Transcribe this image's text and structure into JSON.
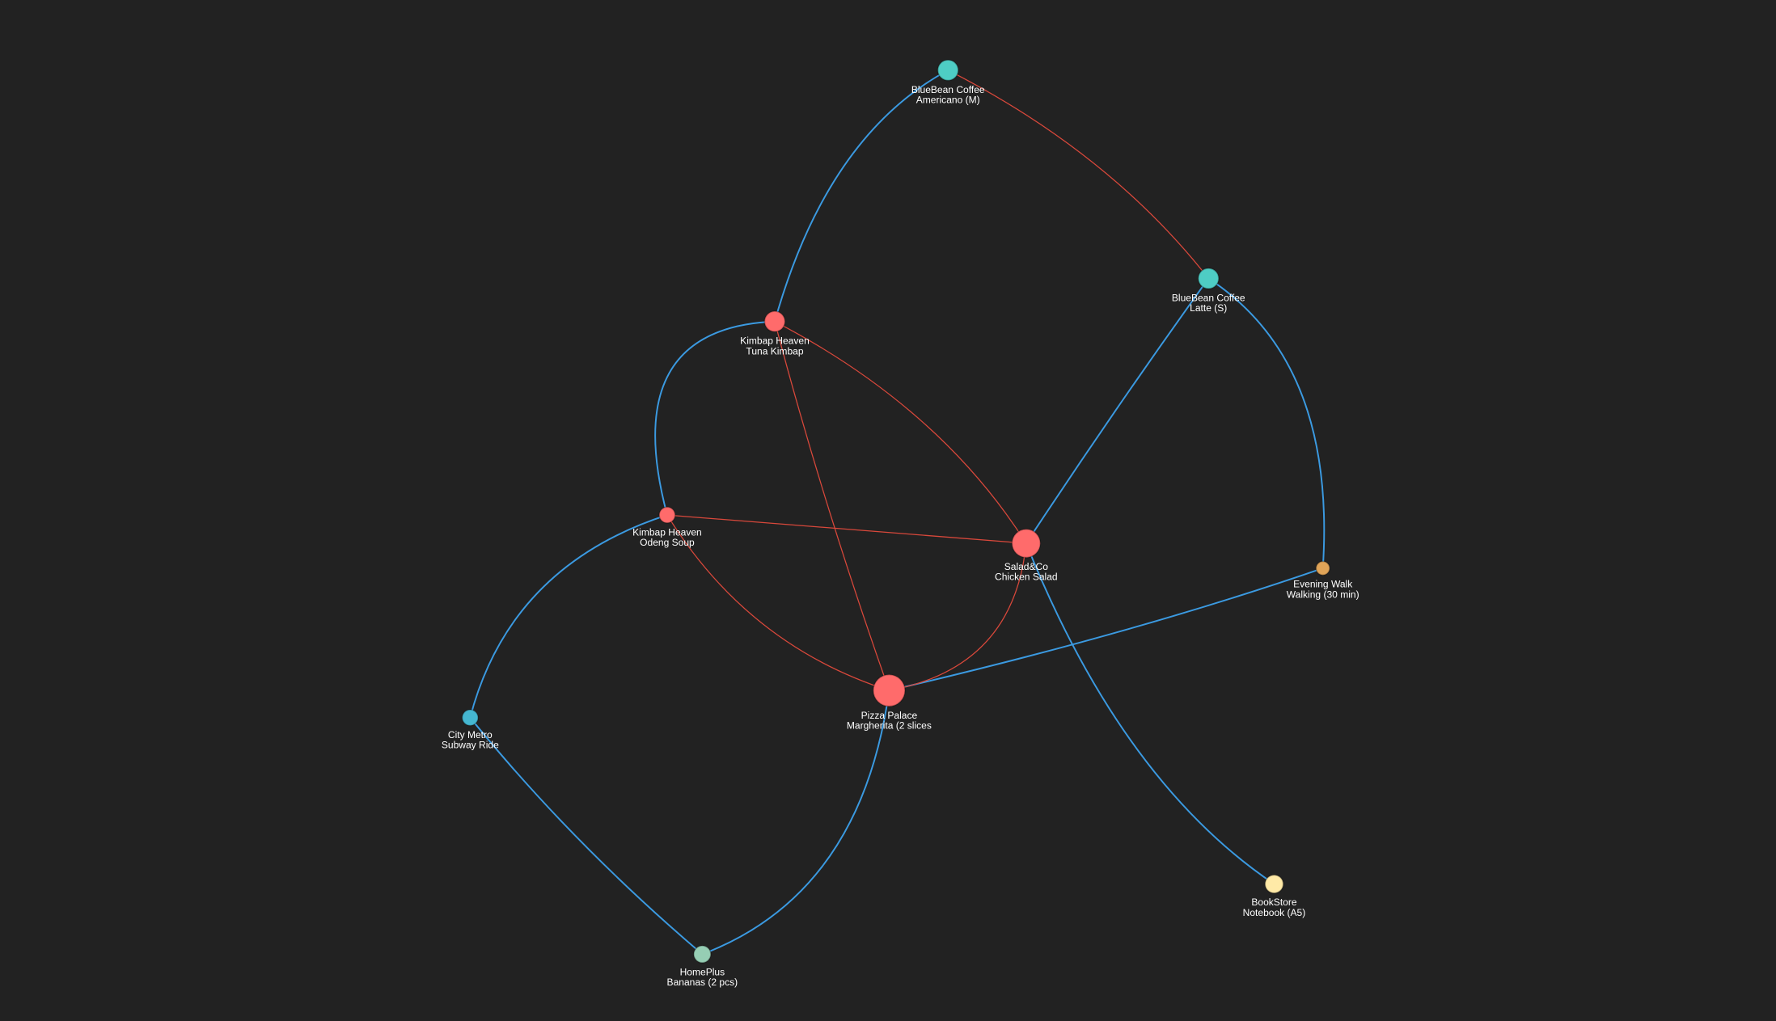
{
  "colors": {
    "background": "#222222",
    "edge_blue": "#3b9ae1",
    "edge_red": "#d9483b"
  },
  "nodes": [
    {
      "id": "americano",
      "line1": "BlueBean Coffee",
      "line2": "Americano (M)",
      "color": "#4ecdc4"
    },
    {
      "id": "latte",
      "line1": "BlueBean Coffee",
      "line2": "Latte (S)",
      "color": "#4ecdc4"
    },
    {
      "id": "tuna",
      "line1": "Kimbap Heaven",
      "line2": "Tuna Kimbap",
      "color": "#ff6b6b"
    },
    {
      "id": "odeng",
      "line1": "Kimbap Heaven",
      "line2": "Odeng Soup",
      "color": "#ff6b6b"
    },
    {
      "id": "salad",
      "line1": "Salad&Co",
      "line2": "Chicken Salad",
      "color": "#ff6b6b"
    },
    {
      "id": "walk",
      "line1": "Evening Walk",
      "line2": "Walking (30 min)",
      "color": "#e0a458"
    },
    {
      "id": "pizza",
      "line1": "Pizza Palace",
      "line2": "Margherita (2 slices",
      "color": "#ff6b6b"
    },
    {
      "id": "metro",
      "line1": "City Metro",
      "line2": "Subway Ride",
      "color": "#45b7d1"
    },
    {
      "id": "book",
      "line1": "BookStore",
      "line2": "Notebook (A5)",
      "color": "#ffeaa7"
    },
    {
      "id": "homeplus",
      "line1": "HomePlus",
      "line2": "Bananas (2 pcs)",
      "color": "#96ceb4"
    }
  ],
  "edges": [
    {
      "source": "americano",
      "target": "tuna",
      "kind": "blue"
    },
    {
      "source": "tuna",
      "target": "odeng",
      "kind": "blue"
    },
    {
      "source": "odeng",
      "target": "metro",
      "kind": "blue"
    },
    {
      "source": "metro",
      "target": "homeplus",
      "kind": "blue"
    },
    {
      "source": "homeplus",
      "target": "pizza",
      "kind": "blue"
    },
    {
      "source": "pizza",
      "target": "walk",
      "kind": "blue"
    },
    {
      "source": "walk",
      "target": "latte",
      "kind": "blue"
    },
    {
      "source": "latte",
      "target": "salad",
      "kind": "blue"
    },
    {
      "source": "salad",
      "target": "book",
      "kind": "blue"
    },
    {
      "source": "americano",
      "target": "latte",
      "kind": "red"
    },
    {
      "source": "tuna",
      "target": "salad",
      "kind": "red"
    },
    {
      "source": "tuna",
      "target": "pizza",
      "kind": "red"
    },
    {
      "source": "odeng",
      "target": "salad",
      "kind": "red"
    },
    {
      "source": "odeng",
      "target": "pizza",
      "kind": "red"
    },
    {
      "source": "salad",
      "target": "pizza",
      "kind": "red"
    }
  ]
}
